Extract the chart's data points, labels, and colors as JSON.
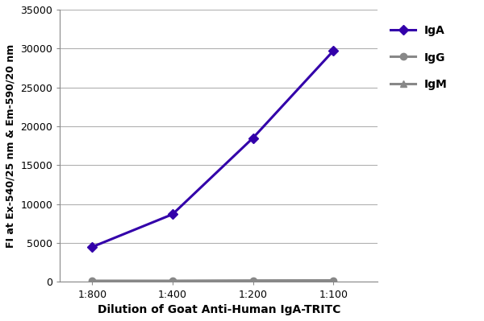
{
  "x_labels": [
    "1:800",
    "1:400",
    "1:200",
    "1:100"
  ],
  "x_positions": [
    1,
    2,
    3,
    4
  ],
  "IgA_values": [
    4500,
    8700,
    18500,
    29700
  ],
  "IgG_values": [
    150,
    150,
    180,
    200
  ],
  "IgM_values": [
    100,
    100,
    130,
    170
  ],
  "IgA_color": "#3300aa",
  "IgG_color": "#888888",
  "IgM_color": "#888888",
  "IgA_marker": "D",
  "IgG_marker": "o",
  "IgM_marker": "^",
  "xlabel": "Dilution of Goat Anti-Human IgA-TRITC",
  "ylabel": "FI at Ex-540/25 nm & Em-590/20 nm",
  "ylim": [
    0,
    35000
  ],
  "yticks": [
    0,
    5000,
    10000,
    15000,
    20000,
    25000,
    30000,
    35000
  ],
  "background_color": "#ffffff",
  "grid_color": "#b0b0b0",
  "line_width": 2.2,
  "marker_size": 6,
  "legend_labels": [
    "IgA",
    "IgG",
    "IgM"
  ],
  "xlabel_fontsize": 10,
  "ylabel_fontsize": 9,
  "tick_fontsize": 9,
  "legend_fontsize": 10
}
